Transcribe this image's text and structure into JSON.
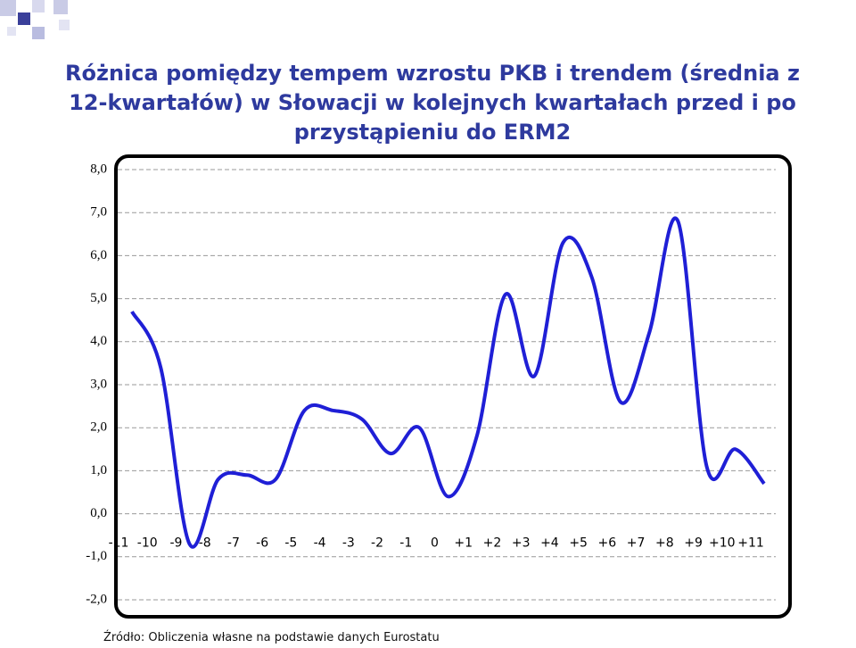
{
  "chart_data": {
    "type": "line",
    "title": "Różnica pomiędzy tempem wzrostu PKB i trendem (średnia z 12-kwartałów) w Słowacji w kolejnych kwartałach przed i po przystąpieniu do ERM2",
    "source": "Źródło: Obliczenia własne na podstawie danych Eurostatu",
    "categories": [
      "-11",
      "-10",
      "-9",
      "-8",
      "-7",
      "-6",
      "-5",
      "-4",
      "-3",
      "-2",
      "-1",
      "0",
      "+1",
      "+2",
      "+3",
      "+4",
      "+5",
      "+6",
      "+7",
      "+8",
      "+9",
      "+10",
      "+11"
    ],
    "series": [
      {
        "color": "#1f1fd6",
        "values": [
          4.7,
          3.4,
          -0.7,
          0.8,
          0.9,
          0.8,
          2.4,
          2.4,
          2.2,
          1.4,
          2.0,
          0.4,
          1.8,
          5.1,
          3.2,
          6.3,
          5.5,
          2.6,
          4.2,
          6.8,
          1.1,
          1.5,
          0.7
        ]
      }
    ],
    "ylim": [
      -2,
      8
    ],
    "yticks": [
      {
        "value": -2,
        "label": "-2,0"
      },
      {
        "value": -1,
        "label": "-1,0"
      },
      {
        "value": 0,
        "label": "0,0"
      },
      {
        "value": 1,
        "label": "1,0"
      },
      {
        "value": 2,
        "label": "2,0"
      },
      {
        "value": 3,
        "label": "3,0"
      },
      {
        "value": 4,
        "label": "4,0"
      },
      {
        "value": 5,
        "label": "5,0"
      },
      {
        "value": 6,
        "label": "6,0"
      },
      {
        "value": 7,
        "label": "7,0"
      },
      {
        "value": 8,
        "label": "8,0"
      }
    ],
    "grid": true
  }
}
